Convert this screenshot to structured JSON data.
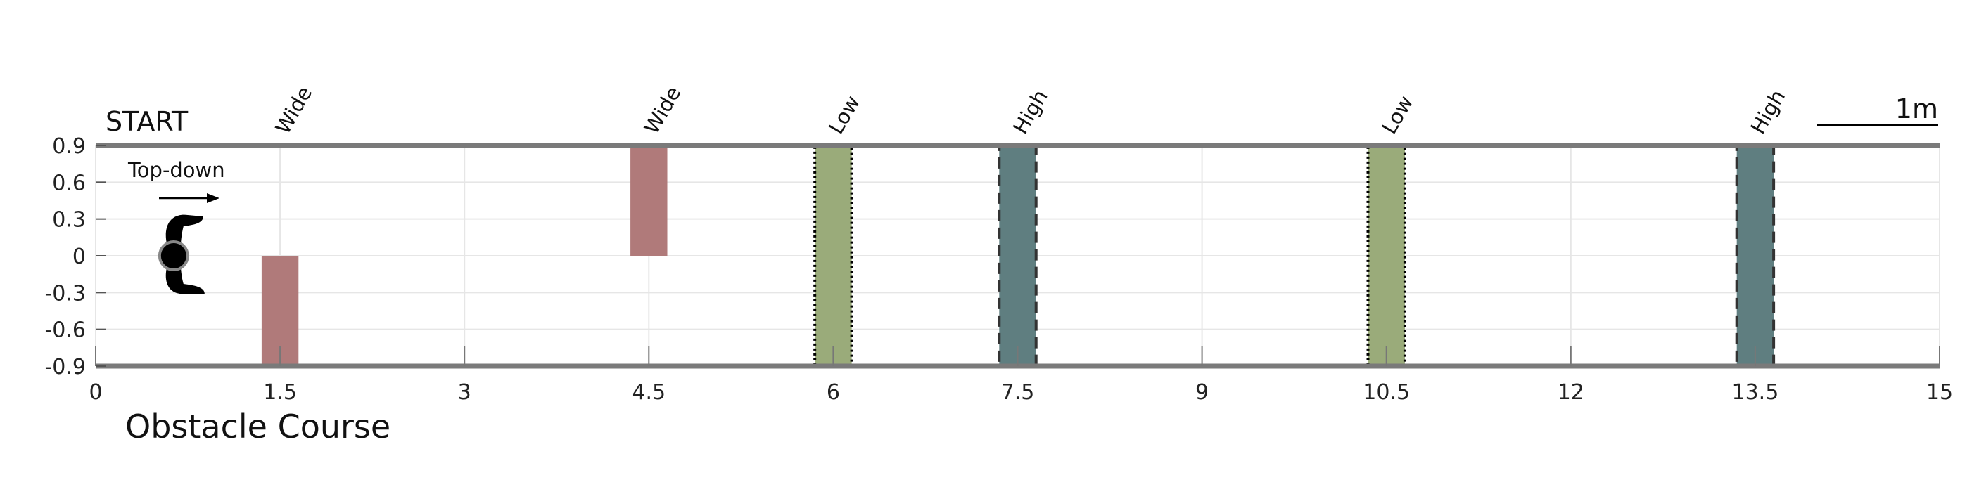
{
  "chart_data": {
    "type": "bar",
    "title": "Obstacle Course",
    "start_label": "START",
    "top_down_label": "Top-down",
    "scale_label": "1m",
    "scale_length_m": 1,
    "xlim": [
      0,
      15
    ],
    "ylim": [
      -0.9,
      0.9
    ],
    "xticks": [
      "0",
      "1.5",
      "3",
      "4.5",
      "6",
      "7.5",
      "9",
      "10.5",
      "12",
      "13.5",
      "15"
    ],
    "yticks": [
      "0.9",
      "0.6",
      "0.3",
      "0",
      "-0.3",
      "-0.6",
      "-0.9"
    ],
    "grid": true,
    "obstacles": [
      {
        "label": "Wide",
        "kind": "wide",
        "x_center": 1.5,
        "width": 0.3,
        "y_range": [
          -0.9,
          0
        ]
      },
      {
        "label": "Wide",
        "kind": "wide",
        "x_center": 4.5,
        "width": 0.3,
        "y_range": [
          0,
          0.9
        ]
      },
      {
        "label": "Low",
        "kind": "low",
        "x_center": 6.0,
        "width": 0.3,
        "y_range": [
          -0.9,
          0.9
        ]
      },
      {
        "label": "High",
        "kind": "high",
        "x_center": 7.5,
        "width": 0.3,
        "y_range": [
          -0.9,
          0.9
        ]
      },
      {
        "label": "Low",
        "kind": "low",
        "x_center": 10.5,
        "width": 0.3,
        "y_range": [
          -0.9,
          0.9
        ]
      },
      {
        "label": "High",
        "kind": "high",
        "x_center": 13.5,
        "width": 0.3,
        "y_range": [
          -0.9,
          0.9
        ]
      }
    ],
    "colors": {
      "wide": "#b07a7a",
      "low": "#9aab7a",
      "high": "#5f7e80",
      "border": "#7a7a7a",
      "grid": "#e6e6e6"
    },
    "robot_position": {
      "x": 0.6,
      "y": 0
    }
  }
}
